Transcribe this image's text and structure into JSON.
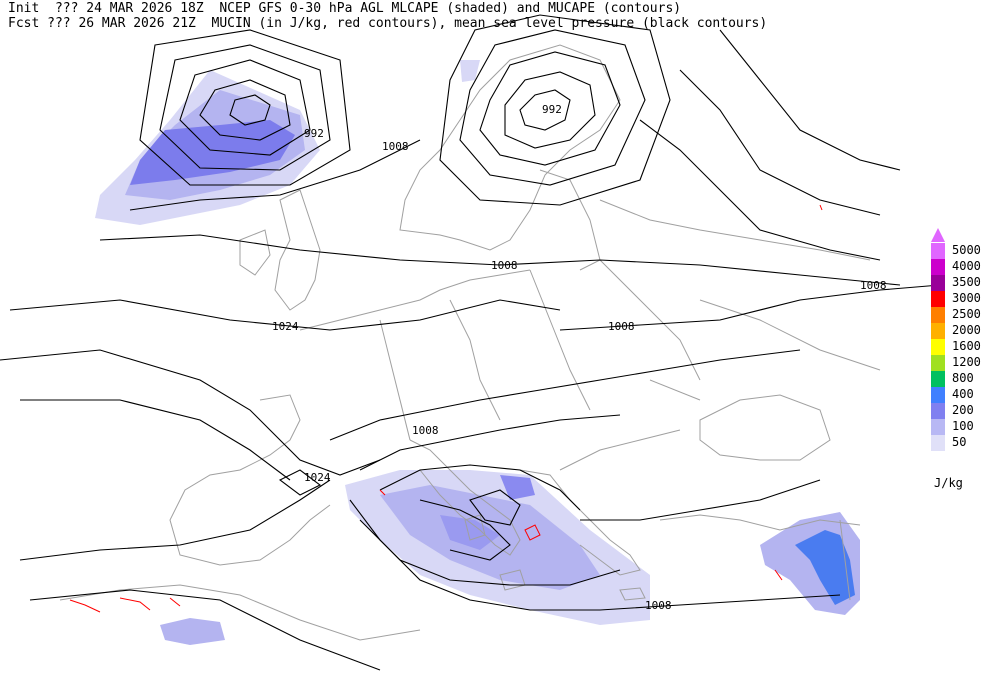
{
  "header": {
    "init_label": "Init",
    "init_text": "??? 24 MAR 2026 18Z",
    "fcst_label": "Fcst",
    "fcst_text": "??? 26 MAR 2026 21Z",
    "title_line1": "NCEP GFS 0-30 hPa AGL MLCAPE (shaded) and MUCAPE (contours)",
    "title_line2": "MUCIN (in J/kg, red contours), mean sea level pressure (black contours)"
  },
  "legend": {
    "unit": "J/kg",
    "levels": [
      {
        "label": "5000",
        "color": "#e066ff"
      },
      {
        "label": "4000",
        "color": "#cc00cc"
      },
      {
        "label": "3500",
        "color": "#990099"
      },
      {
        "label": "3000",
        "color": "#ff0000"
      },
      {
        "label": "2500",
        "color": "#ff7f00"
      },
      {
        "label": "2000",
        "color": "#ffb000"
      },
      {
        "label": "1600",
        "color": "#ffff00"
      },
      {
        "label": "1200",
        "color": "#a0e020"
      },
      {
        "label": "800",
        "color": "#00c060"
      },
      {
        "label": "400",
        "color": "#4080ff"
      },
      {
        "label": "200",
        "color": "#8080f0"
      },
      {
        "label": "100",
        "color": "#b8b8f4"
      },
      {
        "label": "50",
        "color": "#e0e0f8"
      }
    ]
  },
  "isobar_labels": [
    "992",
    "992",
    "1008",
    "1008",
    "1008",
    "1008",
    "1024",
    "1008",
    "1024",
    "1008"
  ],
  "colors": {
    "coast": "#a0a0a0",
    "isobar": "#000000",
    "cin": "#ff0000",
    "cape_light": "#d8d8f6",
    "cape_mid": "#b4b4f0",
    "cape_dark": "#7c7cec"
  }
}
